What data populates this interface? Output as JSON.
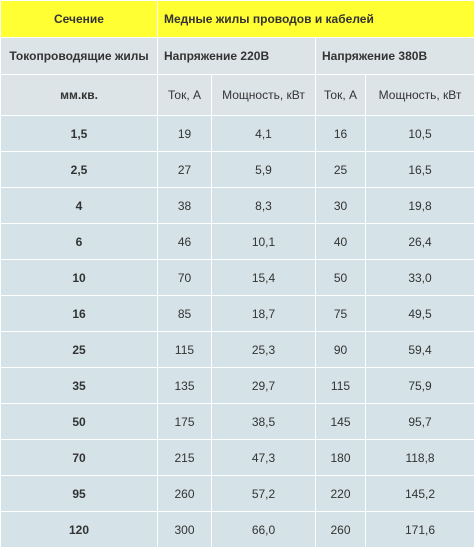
{
  "header": {
    "section_label": "Сечение",
    "title": "Медные жилы проводов и кабелей",
    "conductors_label": "Токопроводящие жилы",
    "voltage_220": "Напряжение 220В",
    "voltage_380": "Напряжение 380В",
    "unit_label": "мм.кв.",
    "current_220": "Ток, А",
    "power_220": "Мощность, кВт",
    "current_380": "Ток, А",
    "power_380": "Мощность, кВт"
  },
  "rows": [
    {
      "section": "1,5",
      "i220": "19",
      "p220": "4,1",
      "i380": "16",
      "p380": "10,5"
    },
    {
      "section": "2,5",
      "i220": "27",
      "p220": "5,9",
      "i380": "25",
      "p380": "16,5"
    },
    {
      "section": "4",
      "i220": "38",
      "p220": "8,3",
      "i380": "30",
      "p380": "19,8"
    },
    {
      "section": "6",
      "i220": "46",
      "p220": "10,1",
      "i380": "40",
      "p380": "26,4"
    },
    {
      "section": "10",
      "i220": "70",
      "p220": "15,4",
      "i380": "50",
      "p380": "33,0"
    },
    {
      "section": "16",
      "i220": "85",
      "p220": "18,7",
      "i380": "75",
      "p380": "49,5"
    },
    {
      "section": "25",
      "i220": "115",
      "p220": "25,3",
      "i380": "90",
      "p380": "59,4"
    },
    {
      "section": "35",
      "i220": "135",
      "p220": "29,7",
      "i380": "115",
      "p380": "75,9"
    },
    {
      "section": "50",
      "i220": "175",
      "p220": "38,5",
      "i380": "145",
      "p380": "95,7"
    },
    {
      "section": "70",
      "i220": "215",
      "p220": "47,3",
      "i380": "180",
      "p380": "118,8"
    },
    {
      "section": "95",
      "i220": "260",
      "p220": "57,2",
      "i380": "220",
      "p380": "145,2"
    },
    {
      "section": "120",
      "i220": "300",
      "p220": "66,0",
      "i380": "260",
      "p380": "171,6"
    }
  ]
}
